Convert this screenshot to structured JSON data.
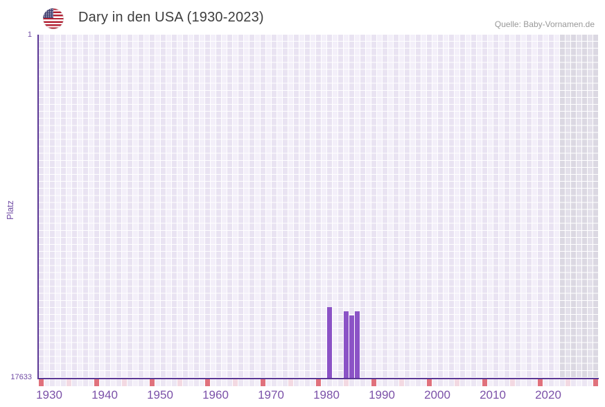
{
  "header": {
    "flag_icon": "us-flag-icon",
    "title": "Dary in den USA (1930-2023)",
    "source": "Quelle: Baby-Vornamen.de"
  },
  "chart_data": {
    "type": "bar",
    "title": "Dary in den USA (1930-2023)",
    "xlabel": "",
    "ylabel": "Platz",
    "grid": true,
    "legend": "none",
    "y_axis": {
      "min": 1,
      "max": 17633,
      "inverted": true,
      "tick_labels": [
        "1",
        "17633"
      ]
    },
    "x_axis": {
      "data_start_year": 1930,
      "data_end_year": 2023,
      "grid_end_year": 2030,
      "tick_labels": [
        "1930",
        "1940",
        "1950",
        "1960",
        "1970",
        "1980",
        "1990",
        "2000",
        "2010",
        "2020"
      ],
      "decade_interval": 10,
      "half_decade_interval": 5
    },
    "series": [
      {
        "name": "Platz",
        "points": [
          {
            "year": 1982,
            "rank": 14000
          },
          {
            "year": 1985,
            "rank": 14210
          },
          {
            "year": 1986,
            "rank": 14430
          },
          {
            "year": 1987,
            "rank": 14210
          }
        ]
      }
    ]
  },
  "colors": {
    "bar": "#8B53C6",
    "axis_line": "#5B3795",
    "x_tick_label": "#7B51A8",
    "y_tick_label": "#6F4AA3",
    "y_title": "#6F4AA3",
    "grid_cell_even": "#E9E3F2",
    "grid_cell_odd": "#F3EFF9",
    "future_cell_even": "#DBD8E2",
    "future_cell_odd": "#E3E0EA",
    "tick_cell_even": "#ECE6F3",
    "tick_cell_odd": "#F3EFF8",
    "decade_tick": "#E0717C",
    "half_decade_tick": "#F3D9E2",
    "title_text": "#3D3D3D",
    "source_text": "#989898",
    "flag_red": "#B22234",
    "flag_blue": "#3C3B6E"
  }
}
